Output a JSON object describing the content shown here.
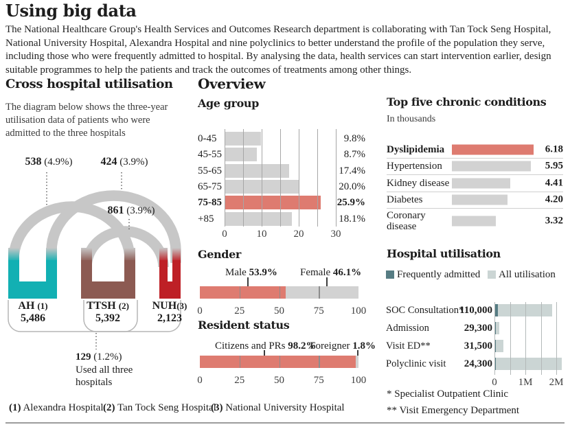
{
  "colors": {
    "salmon": "#de7b70",
    "gray_bar": "#d2d2d2",
    "teal": "#12b0b3",
    "brown": "#8c5a52",
    "red": "#be2026",
    "arch": "#c7c7c7",
    "container_stroke": "#b5b5b5",
    "freq_dark": "#567c83",
    "util_light": "#cbd5d4"
  },
  "header": {
    "title": "Using big data",
    "intro": "The National Healthcare Group's Health Services and Outcomes Research department is collaborating with Tan Tock Seng Hospital, National University Hospital, Alexandra Hospital and nine polyclinics to better understand the profile of the population they serve, including those who were frequently admitted to hospital. By analysing the data, health services can start intervention earlier, design suitable programmes to help the patients and track the outcomes of treatments among other things."
  },
  "cross_hospital": {
    "title": "Cross hospital utilisation",
    "description": "The diagram below shows the three-year utilisation data of patients who were admitted to the three hospitals",
    "overlaps": [
      {
        "pair": "AH-TTSH",
        "value": "538",
        "pct": "(4.9%)"
      },
      {
        "pair": "AH-NUH",
        "value": "424",
        "pct": "(3.9%)"
      },
      {
        "pair": "TTSH-NUH",
        "value": "861",
        "pct": "(3.9%)"
      }
    ],
    "hospitals": [
      {
        "abbr": "AH",
        "ref": "(1)",
        "count": "5,486"
      },
      {
        "abbr": "TTSH",
        "ref": "(2)",
        "count": "5,392"
      },
      {
        "abbr": "NUH",
        "ref": "(3)",
        "count": "2,123"
      }
    ],
    "all_three": {
      "value": "129",
      "pct": "(1.2%)",
      "line1": "Used all three",
      "line2": "hospitals"
    }
  },
  "overview": {
    "title": "Overview"
  },
  "chart_data": [
    {
      "id": "age_group",
      "type": "bar",
      "title": "Age group",
      "categories": [
        "0-45",
        "45-55",
        "55-65",
        "65-75",
        "75-85",
        "+85"
      ],
      "values": [
        9.8,
        8.7,
        17.4,
        20.0,
        25.9,
        18.1
      ],
      "value_labels": [
        "9.8%",
        "8.7%",
        "17.4%",
        "20.0%",
        "25.9%",
        "18.1%"
      ],
      "highlight_index": 4,
      "xlim": [
        0,
        30
      ],
      "x_ticks": [
        0,
        10,
        20,
        30
      ],
      "grid_step": 5
    },
    {
      "id": "gender",
      "type": "stacked_bar",
      "title": "Gender",
      "xlim": [
        0,
        100
      ],
      "x_ticks": [
        0,
        25,
        50,
        75,
        100
      ],
      "segments": [
        {
          "label": "Male",
          "value": 53.9,
          "value_label": "53.9%"
        },
        {
          "label": "Female",
          "value": 46.1,
          "value_label": "46.1%"
        }
      ]
    },
    {
      "id": "resident_status",
      "type": "stacked_bar",
      "title": "Resident status",
      "xlim": [
        0,
        100
      ],
      "x_ticks": [
        0,
        25,
        50,
        75,
        100
      ],
      "segments": [
        {
          "label": "Citizens and PRs",
          "value": 98.2,
          "value_label": "98.2%"
        },
        {
          "label": "Foreigner",
          "value": 1.8,
          "value_label": "1.8%"
        }
      ]
    },
    {
      "id": "chronic_conditions",
      "type": "bar",
      "title": "Top five chronic conditions",
      "subtitle": "In thousands",
      "categories": [
        "Dyslipidemia",
        "Hypertension",
        "Kidney disease",
        "Diabetes",
        "Coronary disease"
      ],
      "values": [
        6.18,
        5.95,
        4.41,
        4.2,
        3.32
      ],
      "value_labels": [
        "6.18",
        "5.95",
        "4.41",
        "4.20",
        "3.32"
      ],
      "highlight_index": 0,
      "xlim": [
        0,
        6.5
      ]
    },
    {
      "id": "hospital_utilisation",
      "type": "bar",
      "title": "Hospital utilisation",
      "legend": [
        "Frequently admitted",
        "All utilisation"
      ],
      "categories": [
        "SOC Consultation*",
        "Admission",
        "Visit ED**",
        "Polyclinic visit"
      ],
      "frequently_admitted": {
        "values": [
          110000,
          29300,
          31500,
          24300
        ],
        "value_labels": [
          "110,000",
          "29,300",
          "31,500",
          "24,300"
        ]
      },
      "all_utilisation_estimated": [
        1870000,
        160000,
        290000,
        2180000
      ],
      "xlim": [
        0,
        2200000
      ],
      "x_ticks": [
        "0",
        "1M",
        "2M"
      ],
      "footnotes": [
        "* Specialist Outpatient Clinic",
        "** Visit Emergency Department"
      ]
    }
  ],
  "footer": {
    "items": [
      {
        "ref": "(1)",
        "name": "Alexandra Hospital"
      },
      {
        "ref": "(2)",
        "name": "Tan Tock Seng Hospital"
      },
      {
        "ref": "(3)",
        "name": "National University Hospital"
      }
    ]
  }
}
